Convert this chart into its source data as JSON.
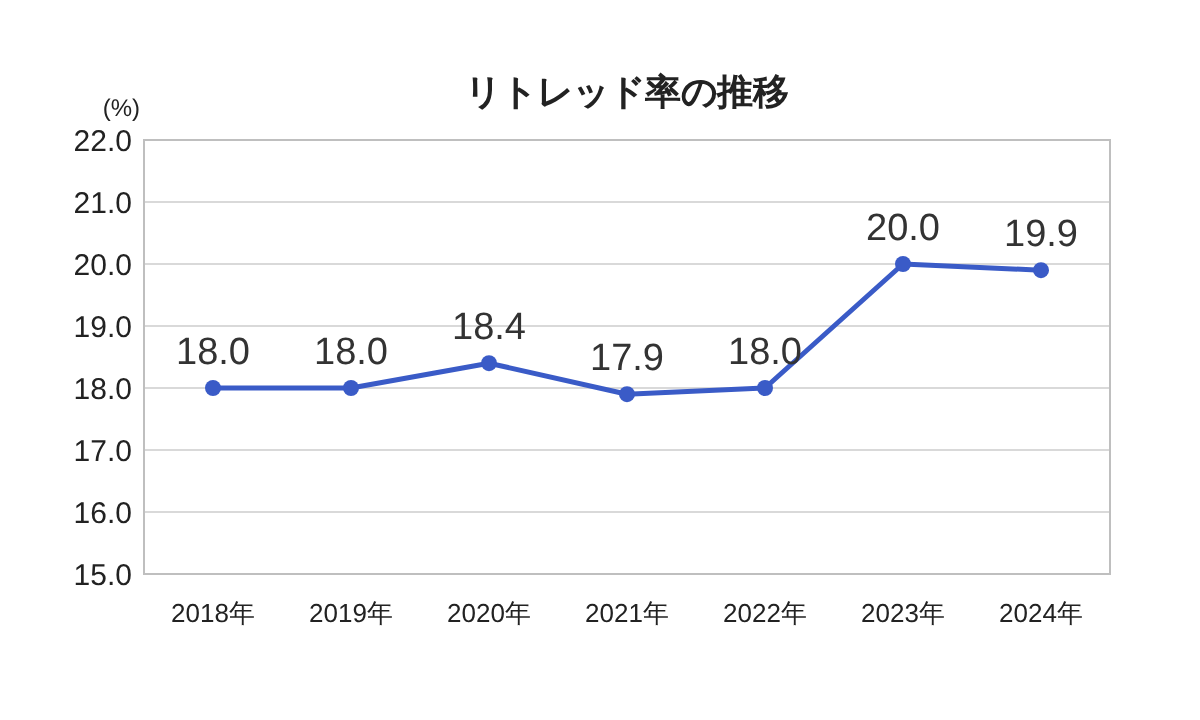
{
  "chart_data": {
    "type": "line",
    "title": "リトレッド率の推移",
    "ylabel": "(%)",
    "categories": [
      "2018年",
      "2019年",
      "2020年",
      "2021年",
      "2022年",
      "2023年",
      "2024年"
    ],
    "series": [
      {
        "color": "#3a5bc7",
        "values": [
          18.0,
          18.0,
          18.4,
          17.9,
          18.0,
          20.0,
          19.9
        ]
      }
    ],
    "ylim": [
      15,
      22
    ],
    "yticks": [
      {
        "value": 15,
        "label": "15.0"
      },
      {
        "value": 16,
        "label": "16.0"
      },
      {
        "value": 17,
        "label": "17.0"
      },
      {
        "value": 18,
        "label": "18.0"
      },
      {
        "value": 19,
        "label": "19.0"
      },
      {
        "value": 20,
        "label": "20.0"
      },
      {
        "value": 21,
        "label": "21.0"
      },
      {
        "value": 22,
        "label": "22.0"
      }
    ],
    "grid": "y",
    "marker": "circle",
    "line_style": "solid",
    "value_labels": [
      [
        "18.0",
        "18.0",
        "18.4",
        "17.9",
        "18.0",
        "20.0",
        "19.9"
      ]
    ]
  }
}
